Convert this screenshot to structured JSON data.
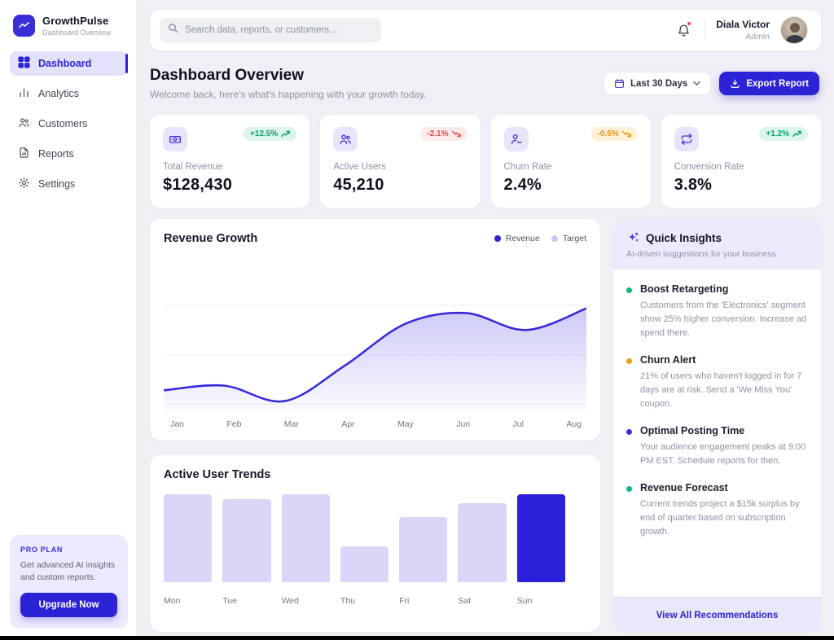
{
  "app": {
    "name": "GrowthPulse",
    "subtitle": "Dashboard Overview"
  },
  "sidebar": {
    "items": [
      {
        "label": "Dashboard",
        "icon": "grid-icon",
        "active": true
      },
      {
        "label": "Analytics",
        "icon": "bar-chart-icon",
        "active": false
      },
      {
        "label": "Customers",
        "icon": "users-icon",
        "active": false
      },
      {
        "label": "Reports",
        "icon": "file-report-icon",
        "active": false
      },
      {
        "label": "Settings",
        "icon": "gear-icon",
        "active": false
      }
    ],
    "pro_plan": {
      "badge": "PRO PLAN",
      "text": "Get advanced AI insights and custom reports.",
      "button": "Upgrade Now"
    }
  },
  "topbar": {
    "search_placeholder": "Search data, reports, or customers...",
    "has_notification": true,
    "user": {
      "name": "Diala Victor",
      "role": "Admin"
    }
  },
  "header": {
    "title": "Dashboard Overview",
    "subtitle": "Welcome back, here's what's happening with your growth today.",
    "date_range": "Last 30 Days",
    "export_label": "Export Report"
  },
  "stats": [
    {
      "label": "Total Revenue",
      "value": "$128,430",
      "change": "+12.5%",
      "trend": "up",
      "badge_style": "positive",
      "icon": "banknote-icon"
    },
    {
      "label": "Active Users",
      "value": "45,210",
      "change": "-2.1%",
      "trend": "down",
      "badge_style": "negative",
      "icon": "users-icon"
    },
    {
      "label": "Churn Rate",
      "value": "2.4%",
      "change": "-0.5%",
      "trend": "down",
      "badge_style": "warning",
      "icon": "user-minus-icon"
    },
    {
      "label": "Conversion Rate",
      "value": "3.8%",
      "change": "+1.2%",
      "trend": "up",
      "badge_style": "positive",
      "icon": "repeat-icon"
    }
  ],
  "chart_data": [
    {
      "type": "area",
      "title": "Revenue Growth",
      "x": [
        "Jan",
        "Feb",
        "Mar",
        "Apr",
        "May",
        "Jun",
        "Jul",
        "Aug"
      ],
      "series": [
        {
          "name": "Revenue",
          "values": [
            14,
            17,
            7,
            30,
            57,
            64,
            53,
            67
          ]
        }
      ],
      "legend": [
        {
          "label": "Revenue",
          "color": "#2d23d6"
        },
        {
          "label": "Target",
          "color": "#c9c5f5"
        }
      ],
      "legend_position": "top-right",
      "ylim": [
        0,
        100
      ],
      "grid": true,
      "line_color": "#372bd8",
      "fill_from": "rgba(90,80,230,0.30)",
      "fill_to": "rgba(90,80,230,0.02)"
    },
    {
      "type": "bar",
      "title": "Active User Trends",
      "categories": [
        "Mon",
        "Tue",
        "Wed",
        "Thu",
        "Fri",
        "Sat",
        "Sun"
      ],
      "values": [
        100,
        94,
        100,
        41,
        74,
        90,
        100
      ],
      "highlight_index": 6,
      "ylim": [
        0,
        100
      ],
      "bar_color": "#d9d6f8",
      "highlight_color": "#2b20d9"
    }
  ],
  "insights": {
    "title": "Quick Insights",
    "subtitle": "AI-driven suggestions for your business.",
    "items": [
      {
        "dot_color": "#10b981",
        "title": "Boost Retargeting",
        "text": "Customers from the 'Electronics' segment show 25% higher conversion. Increase ad spend there."
      },
      {
        "dot_color": "#f0a009",
        "title": "Churn Alert",
        "text": "21% of users who haven't logged in for 7 days are at risk. Send a 'We Miss You' coupon."
      },
      {
        "dot_color": "#3b2fe0",
        "title": "Optimal Posting Time",
        "text": "Your audience engagement peaks at 9:00 PM EST. Schedule reports for then."
      },
      {
        "dot_color": "#10b981",
        "title": "Revenue Forecast",
        "text": "Current trends project a $15k surplus by end of quarter based on subscription growth."
      }
    ],
    "footer_link": "View All Recommendations"
  },
  "colors": {
    "primary": "#2d23d6",
    "primary_light": "#d9d6f8",
    "page_background": "#f0eff5",
    "positive": "#0b9e6f",
    "negative": "#e5484d",
    "warning": "#e8960c"
  }
}
